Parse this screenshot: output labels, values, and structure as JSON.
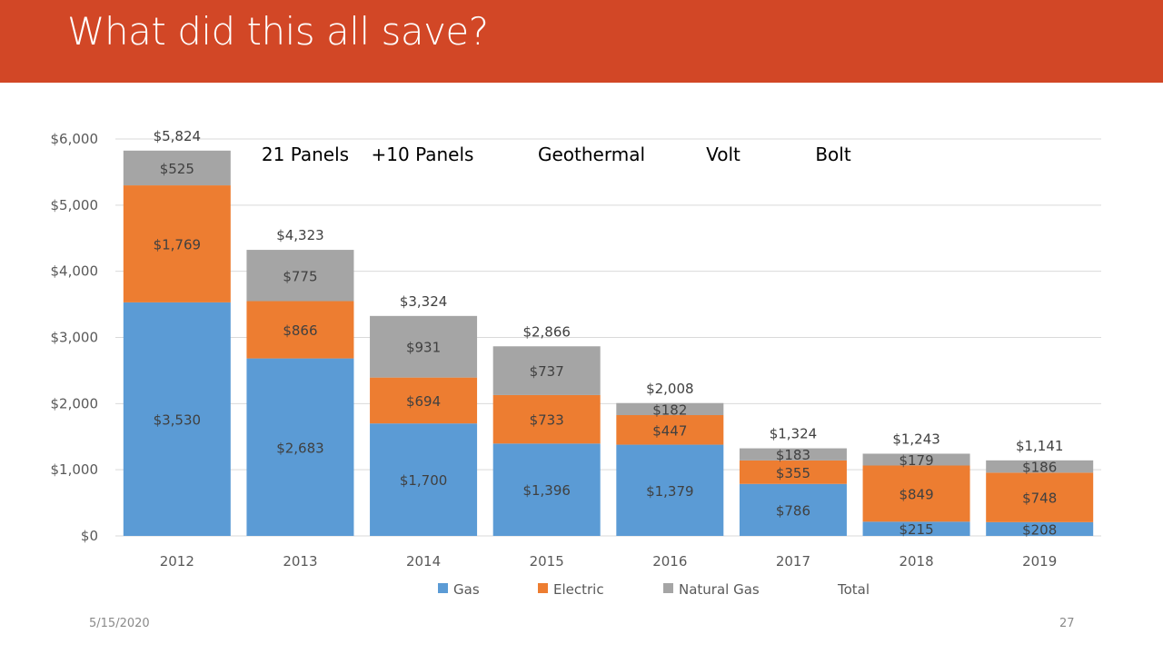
{
  "slide": {
    "title": "What did this all save?",
    "date": "5/15/2020",
    "page_number": "27"
  },
  "colors": {
    "header": "#d24726",
    "gas": "#5b9bd5",
    "electric": "#ed7d31",
    "natural_gas": "#a5a5a5",
    "gridline": "#d9d9d9",
    "text": "#404040",
    "tick": "#595959"
  },
  "chart_data": {
    "type": "bar",
    "stacked": true,
    "categories": [
      "2012",
      "2013",
      "2014",
      "2015",
      "2016",
      "2017",
      "2018",
      "2019"
    ],
    "series": [
      {
        "name": "Gas",
        "color": "#5b9bd5",
        "values": [
          3530,
          2683,
          1700,
          1396,
          1379,
          786,
          215,
          208
        ],
        "labels": [
          "$3,530",
          "$2,683",
          "$1,700",
          "$1,396",
          "$1,379",
          "$786",
          "$215",
          "$208"
        ]
      },
      {
        "name": "Electric",
        "color": "#ed7d31",
        "values": [
          1769,
          866,
          694,
          733,
          447,
          355,
          849,
          748
        ],
        "labels": [
          "$1,769",
          "$866",
          "$694",
          "$733",
          "$447",
          "$355",
          "$849",
          "$748"
        ]
      },
      {
        "name": "Natural Gas",
        "color": "#a5a5a5",
        "values": [
          525,
          775,
          931,
          737,
          182,
          183,
          179,
          186
        ],
        "labels": [
          "$525",
          "$775",
          "$931",
          "$737",
          "$182",
          "$183",
          "$179",
          "$186"
        ]
      }
    ],
    "totals": {
      "name": "Total",
      "values": [
        5824,
        4323,
        3324,
        2866,
        2008,
        1324,
        1243,
        1141
      ],
      "labels": [
        "$5,824",
        "$4,323",
        "$3,324",
        "$2,866",
        "$2,008",
        "$1,324",
        "$1,243",
        "$1,141"
      ]
    },
    "ylim": [
      0,
      6000
    ],
    "yticks": [
      0,
      1000,
      2000,
      3000,
      4000,
      5000,
      6000
    ],
    "ytick_labels": [
      "$0",
      "$1,000",
      "$2,000",
      "$3,000",
      "$4,000",
      "$5,000",
      "$6,000"
    ],
    "grid": true,
    "legend_position": "bottom",
    "legend": [
      "Gas",
      "Electric",
      "Natural Gas",
      "Total"
    ],
    "annotations": [
      {
        "text": "21 Panels",
        "after_category": "2012"
      },
      {
        "text": "+10 Panels",
        "after_category": "2013"
      },
      {
        "text": "Geothermal",
        "after_category": "2014"
      },
      {
        "text": "Volt",
        "after_category": "2016"
      },
      {
        "text": "Bolt",
        "after_category": "2017"
      }
    ]
  }
}
